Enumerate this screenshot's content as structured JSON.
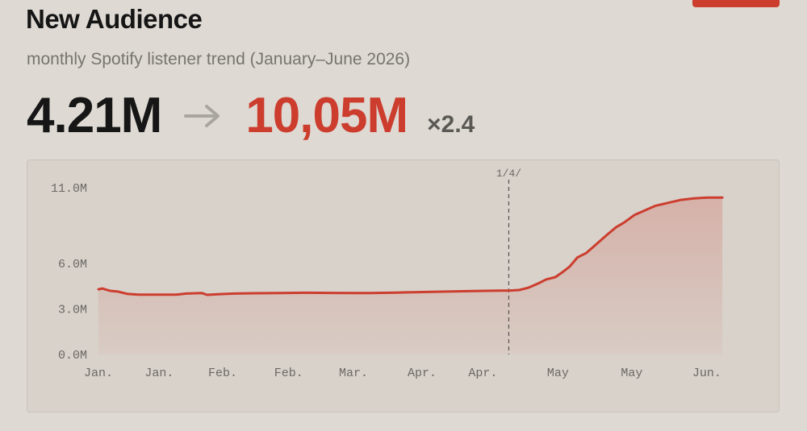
{
  "header": {
    "title": "New Audience",
    "subtitle": "monthly Spotify listener trend (January–June 2026)"
  },
  "stats": {
    "from_value": "4.21M",
    "to_value": "10,05M",
    "multiplier": "×2.4",
    "arrow_icon": "arrow-right-icon"
  },
  "colors": {
    "accent": "#cc3d2e",
    "arrow": "#a9a59f",
    "grid": "#c9c3bb",
    "marker": "#555350"
  },
  "chart_data": {
    "type": "area",
    "title": "",
    "xlabel": "",
    "ylabel": "",
    "ylim": [
      0,
      11
    ],
    "y_ticks": [
      {
        "value": 0,
        "label": "0.0M"
      },
      {
        "value": 3,
        "label": "3.0M"
      },
      {
        "value": 6,
        "label": "6.0M"
      },
      {
        "value": 11,
        "label": "11.0M"
      }
    ],
    "x_range": [
      1,
      6
    ],
    "x_ticks": [
      {
        "x": 1.0,
        "label": "Jan."
      },
      {
        "x": 1.47,
        "label": "Jan."
      },
      {
        "x": 1.96,
        "label": "Feb."
      },
      {
        "x": 2.47,
        "label": "Feb."
      },
      {
        "x": 2.97,
        "label": "Mar."
      },
      {
        "x": 3.5,
        "label": "Apr."
      },
      {
        "x": 3.97,
        "label": "Apr."
      },
      {
        "x": 4.55,
        "label": "May"
      },
      {
        "x": 5.12,
        "label": "May"
      },
      {
        "x": 5.7,
        "label": "Jun."
      }
    ],
    "marker": {
      "x": 4.17,
      "label": "1/4/"
    },
    "grid": false,
    "series": [
      {
        "values": [
          [
            1.0,
            4.3
          ],
          [
            1.03,
            4.35
          ],
          [
            1.09,
            4.2
          ],
          [
            1.15,
            4.15
          ],
          [
            1.22,
            4.0
          ],
          [
            1.31,
            3.95
          ],
          [
            1.4,
            3.95
          ],
          [
            1.5,
            3.95
          ],
          [
            1.6,
            3.95
          ],
          [
            1.68,
            4.02
          ],
          [
            1.8,
            4.05
          ],
          [
            1.84,
            3.93
          ],
          [
            1.92,
            3.97
          ],
          [
            2.05,
            4.02
          ],
          [
            2.2,
            4.04
          ],
          [
            2.4,
            4.05
          ],
          [
            2.6,
            4.07
          ],
          [
            2.8,
            4.06
          ],
          [
            2.97,
            4.05
          ],
          [
            3.1,
            4.05
          ],
          [
            3.3,
            4.08
          ],
          [
            3.5,
            4.12
          ],
          [
            3.7,
            4.15
          ],
          [
            3.9,
            4.18
          ],
          [
            4.0,
            4.2
          ],
          [
            4.1,
            4.21
          ],
          [
            4.17,
            4.21
          ],
          [
            4.25,
            4.25
          ],
          [
            4.32,
            4.4
          ],
          [
            4.4,
            4.7
          ],
          [
            4.46,
            4.95
          ],
          [
            4.53,
            5.1
          ],
          [
            4.58,
            5.4
          ],
          [
            4.64,
            5.8
          ],
          [
            4.7,
            6.4
          ],
          [
            4.77,
            6.7
          ],
          [
            4.85,
            7.3
          ],
          [
            4.93,
            7.9
          ],
          [
            5.0,
            8.4
          ],
          [
            5.06,
            8.7
          ],
          [
            5.14,
            9.2
          ],
          [
            5.22,
            9.5
          ],
          [
            5.3,
            9.8
          ],
          [
            5.4,
            10.0
          ],
          [
            5.5,
            10.2
          ],
          [
            5.6,
            10.3
          ],
          [
            5.7,
            10.35
          ],
          [
            5.82,
            10.35
          ]
        ]
      }
    ]
  }
}
